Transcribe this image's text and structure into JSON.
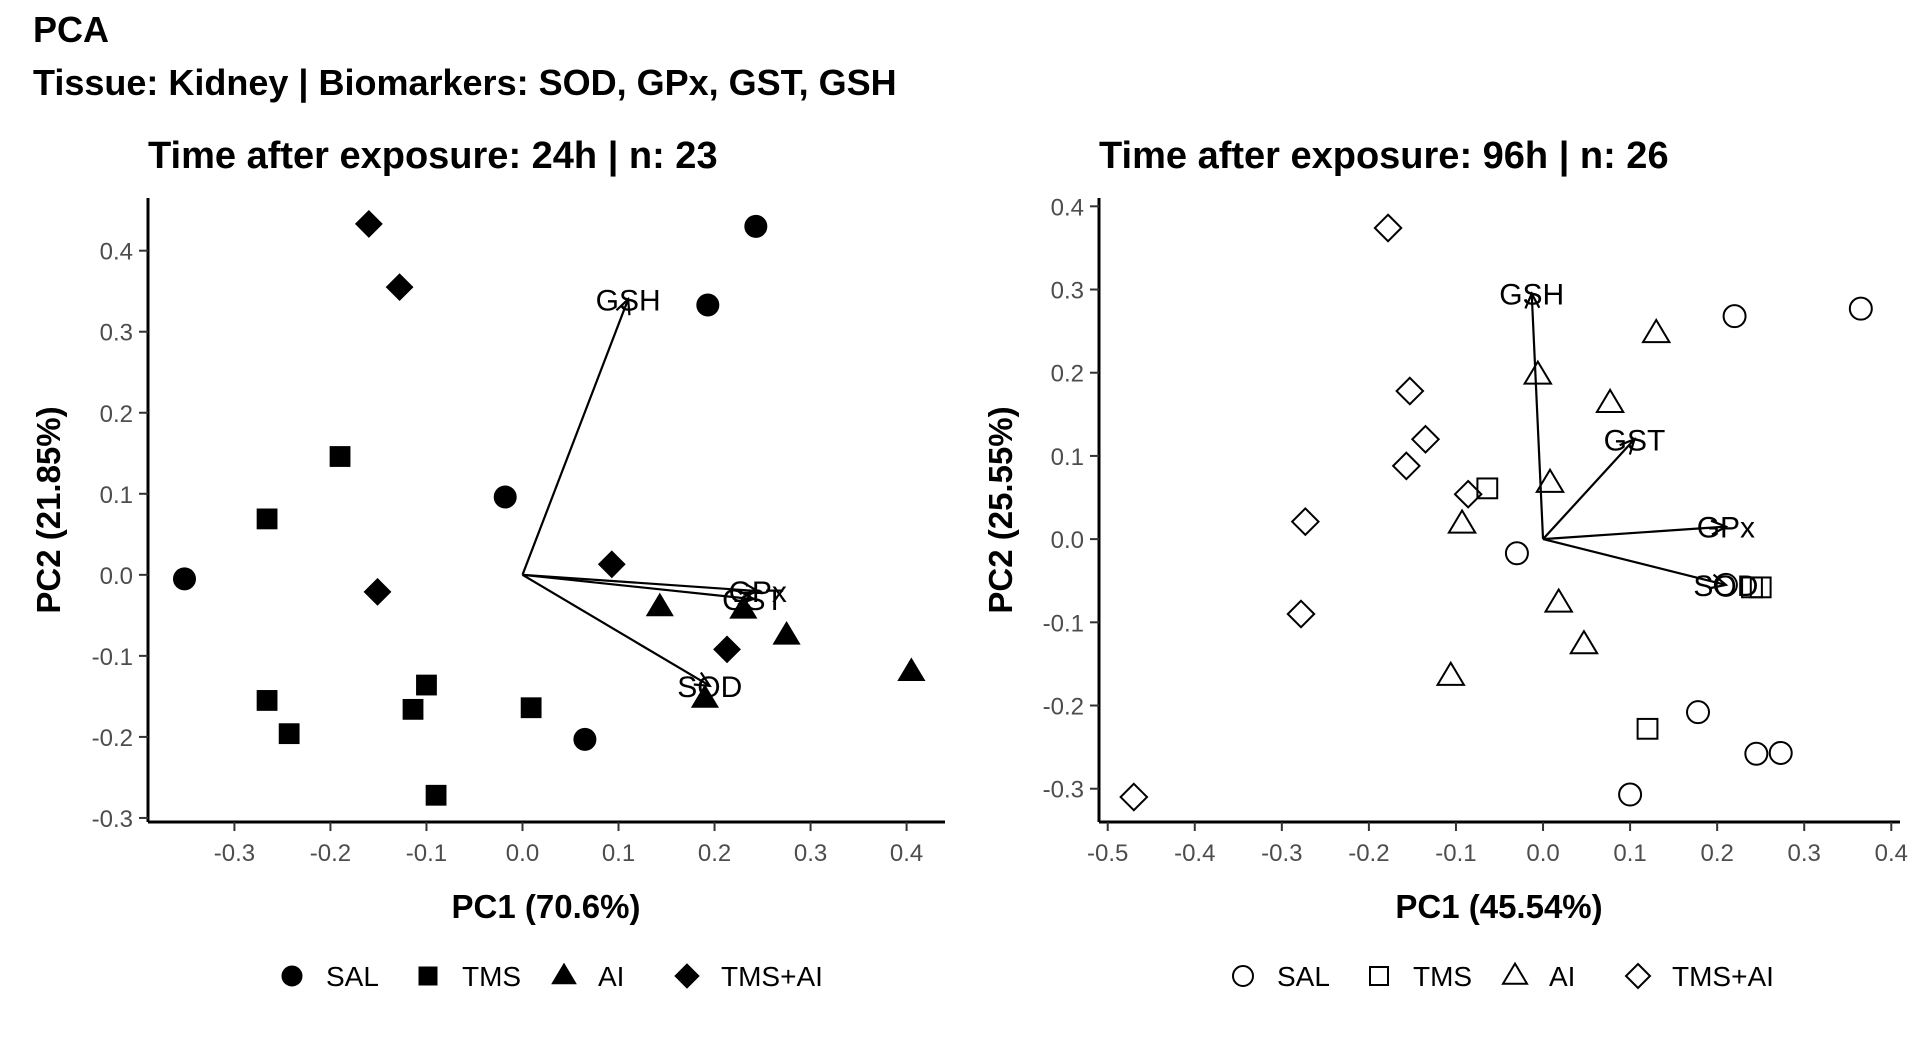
{
  "title": "PCA",
  "subtitle": "Tissue: Kidney | Biomarkers: SOD, GPx, GST, GSH",
  "chart_data": [
    {
      "type": "scatter",
      "title": "Time after exposure: 24h | n: 23",
      "xlabel": "PC1 (70.6%)",
      "ylabel": "PC2 (21.85%)",
      "xlim": [
        -0.39,
        0.44
      ],
      "ylim": [
        -0.305,
        0.465
      ],
      "xticks": [
        -0.3,
        -0.2,
        -0.1,
        0.0,
        0.1,
        0.2,
        0.3,
        0.4
      ],
      "xtick_labels": [
        "-0.3",
        "-0.2",
        "-0.1",
        "0.0",
        "0.1",
        "0.2",
        "0.3",
        "0.4"
      ],
      "yticks": [
        -0.3,
        -0.2,
        -0.1,
        0.0,
        0.1,
        0.2,
        0.3,
        0.4
      ],
      "ytick_labels": [
        "-0.3",
        "-0.2",
        "-0.1",
        "0.0",
        "0.1",
        "0.2",
        "0.3",
        "0.4"
      ],
      "grid": false,
      "marker_fill": "filled",
      "legend_position": "bottom",
      "series": [
        {
          "name": "SAL",
          "marker": "circle",
          "points": [
            [
              -0.352,
              -0.005
            ],
            [
              -0.018,
              0.096
            ],
            [
              0.065,
              -0.203
            ],
            [
              0.193,
              0.333
            ],
            [
              0.243,
              0.43
            ]
          ]
        },
        {
          "name": "TMS",
          "marker": "square",
          "points": [
            [
              -0.266,
              0.069
            ],
            [
              -0.19,
              0.146
            ],
            [
              -0.266,
              -0.155
            ],
            [
              -0.243,
              -0.196
            ],
            [
              -0.114,
              -0.166
            ],
            [
              -0.1,
              -0.136
            ],
            [
              -0.09,
              -0.272
            ],
            [
              0.009,
              -0.164
            ]
          ]
        },
        {
          "name": "AI",
          "marker": "triangle",
          "points": [
            [
              0.143,
              -0.04
            ],
            [
              0.19,
              -0.153
            ],
            [
              0.23,
              -0.043
            ],
            [
              0.275,
              -0.075
            ],
            [
              0.405,
              -0.12
            ]
          ]
        },
        {
          "name": "TMS+AI",
          "marker": "diamond",
          "points": [
            [
              -0.16,
              0.433
            ],
            [
              -0.128,
              0.355
            ],
            [
              -0.151,
              -0.021
            ],
            [
              0.093,
              0.013
            ],
            [
              0.213,
              -0.092
            ]
          ]
        }
      ],
      "loadings": [
        {
          "name": "GSH",
          "x": 0.11,
          "y": 0.34,
          "label": "GSH"
        },
        {
          "name": "GPx",
          "x": 0.245,
          "y": -0.02,
          "label": "GPx"
        },
        {
          "name": "GST",
          "x": 0.24,
          "y": -0.03,
          "label": "GST"
        },
        {
          "name": "SOD",
          "x": 0.195,
          "y": -0.137,
          "label": "SOD"
        }
      ]
    },
    {
      "type": "scatter",
      "title": "Time after exposure: 96h | n: 26",
      "xlabel": "PC1 (45.54%)",
      "ylabel": "PC2 (25.55%)",
      "xlim": [
        -0.51,
        0.41
      ],
      "ylim": [
        -0.34,
        0.41
      ],
      "xticks": [
        -0.5,
        -0.4,
        -0.3,
        -0.2,
        -0.1,
        0.0,
        0.1,
        0.2,
        0.3,
        0.4
      ],
      "xtick_labels": [
        "-0.5",
        "-0.4",
        "-0.3",
        "-0.2",
        "-0.1",
        "0.0",
        "0.1",
        "0.2",
        "0.3",
        "0.4"
      ],
      "yticks": [
        -0.3,
        -0.2,
        -0.1,
        0.0,
        0.1,
        0.2,
        0.3,
        0.4
      ],
      "ytick_labels": [
        "-0.3",
        "-0.2",
        "-0.1",
        "0.0",
        "0.1",
        "0.2",
        "0.3",
        "0.4"
      ],
      "grid": false,
      "marker_fill": "open",
      "legend_position": "bottom",
      "series": [
        {
          "name": "SAL",
          "marker": "circle",
          "points": [
            [
              -0.03,
              -0.017
            ],
            [
              0.1,
              -0.307
            ],
            [
              0.178,
              -0.208
            ],
            [
              0.21,
              -0.055
            ],
            [
              0.22,
              0.268
            ],
            [
              0.245,
              -0.258
            ],
            [
              0.273,
              -0.257
            ],
            [
              0.365,
              0.277
            ]
          ]
        },
        {
          "name": "TMS",
          "marker": "square",
          "points": [
            [
              -0.064,
              0.061
            ],
            [
              0.12,
              -0.228
            ],
            [
              0.24,
              -0.058
            ],
            [
              0.25,
              -0.058
            ]
          ]
        },
        {
          "name": "AI",
          "marker": "triangle",
          "points": [
            [
              -0.006,
              0.197
            ],
            [
              0.008,
              0.067
            ],
            [
              -0.093,
              0.018
            ],
            [
              -0.106,
              -0.165
            ],
            [
              0.018,
              -0.077
            ],
            [
              0.047,
              -0.127
            ],
            [
              0.077,
              0.163
            ],
            [
              0.13,
              0.247
            ]
          ]
        },
        {
          "name": "TMS+AI",
          "marker": "diamond",
          "points": [
            [
              -0.178,
              0.374
            ],
            [
              -0.153,
              0.178
            ],
            [
              -0.135,
              0.12
            ],
            [
              -0.157,
              0.088
            ],
            [
              -0.086,
              0.054
            ],
            [
              -0.273,
              0.021
            ],
            [
              -0.278,
              -0.09
            ],
            [
              -0.47,
              -0.31
            ]
          ]
        }
      ],
      "loadings": [
        {
          "name": "GSH",
          "x": -0.013,
          "y": 0.295,
          "label": "GSH"
        },
        {
          "name": "GST",
          "x": 0.105,
          "y": 0.12,
          "label": "GST"
        },
        {
          "name": "GPx",
          "x": 0.21,
          "y": 0.015,
          "label": "GPx"
        },
        {
          "name": "SOD",
          "x": 0.21,
          "y": -0.055,
          "label": "SOD"
        }
      ]
    }
  ]
}
